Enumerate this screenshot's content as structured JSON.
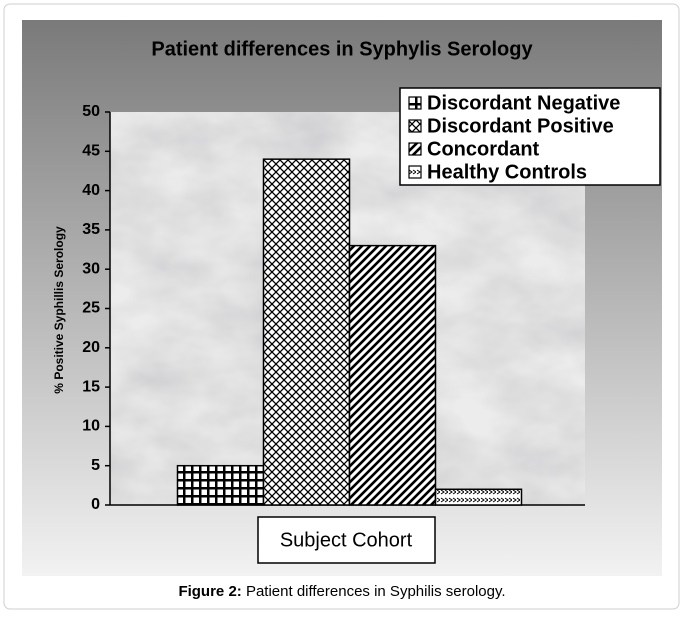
{
  "chart_data": {
    "type": "bar",
    "title": "Patient differences in Syphylis Serology",
    "y_label": "% Positive Syphillis Serology",
    "x_label": "Subject Cohort",
    "series": [
      {
        "name": "Discordant Negative",
        "color": "#000000",
        "pattern": "grid",
        "values": [
          5
        ]
      },
      {
        "name": "Discordant Positive",
        "color": "#000000",
        "pattern": "cross",
        "values": [
          44
        ]
      },
      {
        "name": "Concordant",
        "color": "#000000",
        "pattern": "diag",
        "values": [
          33
        ]
      },
      {
        "name": "Healthy Controls",
        "color": "#000000",
        "pattern": "check",
        "values": [
          2
        ]
      }
    ],
    "ylim": [
      0,
      50
    ],
    "yticks": [
      0,
      5,
      10,
      15,
      20,
      25,
      30,
      35,
      40,
      45,
      50
    ],
    "legend": "top-right"
  },
  "caption": {
    "label": "Figure 2:",
    "text": "Patient differences in Syphilis serology."
  }
}
